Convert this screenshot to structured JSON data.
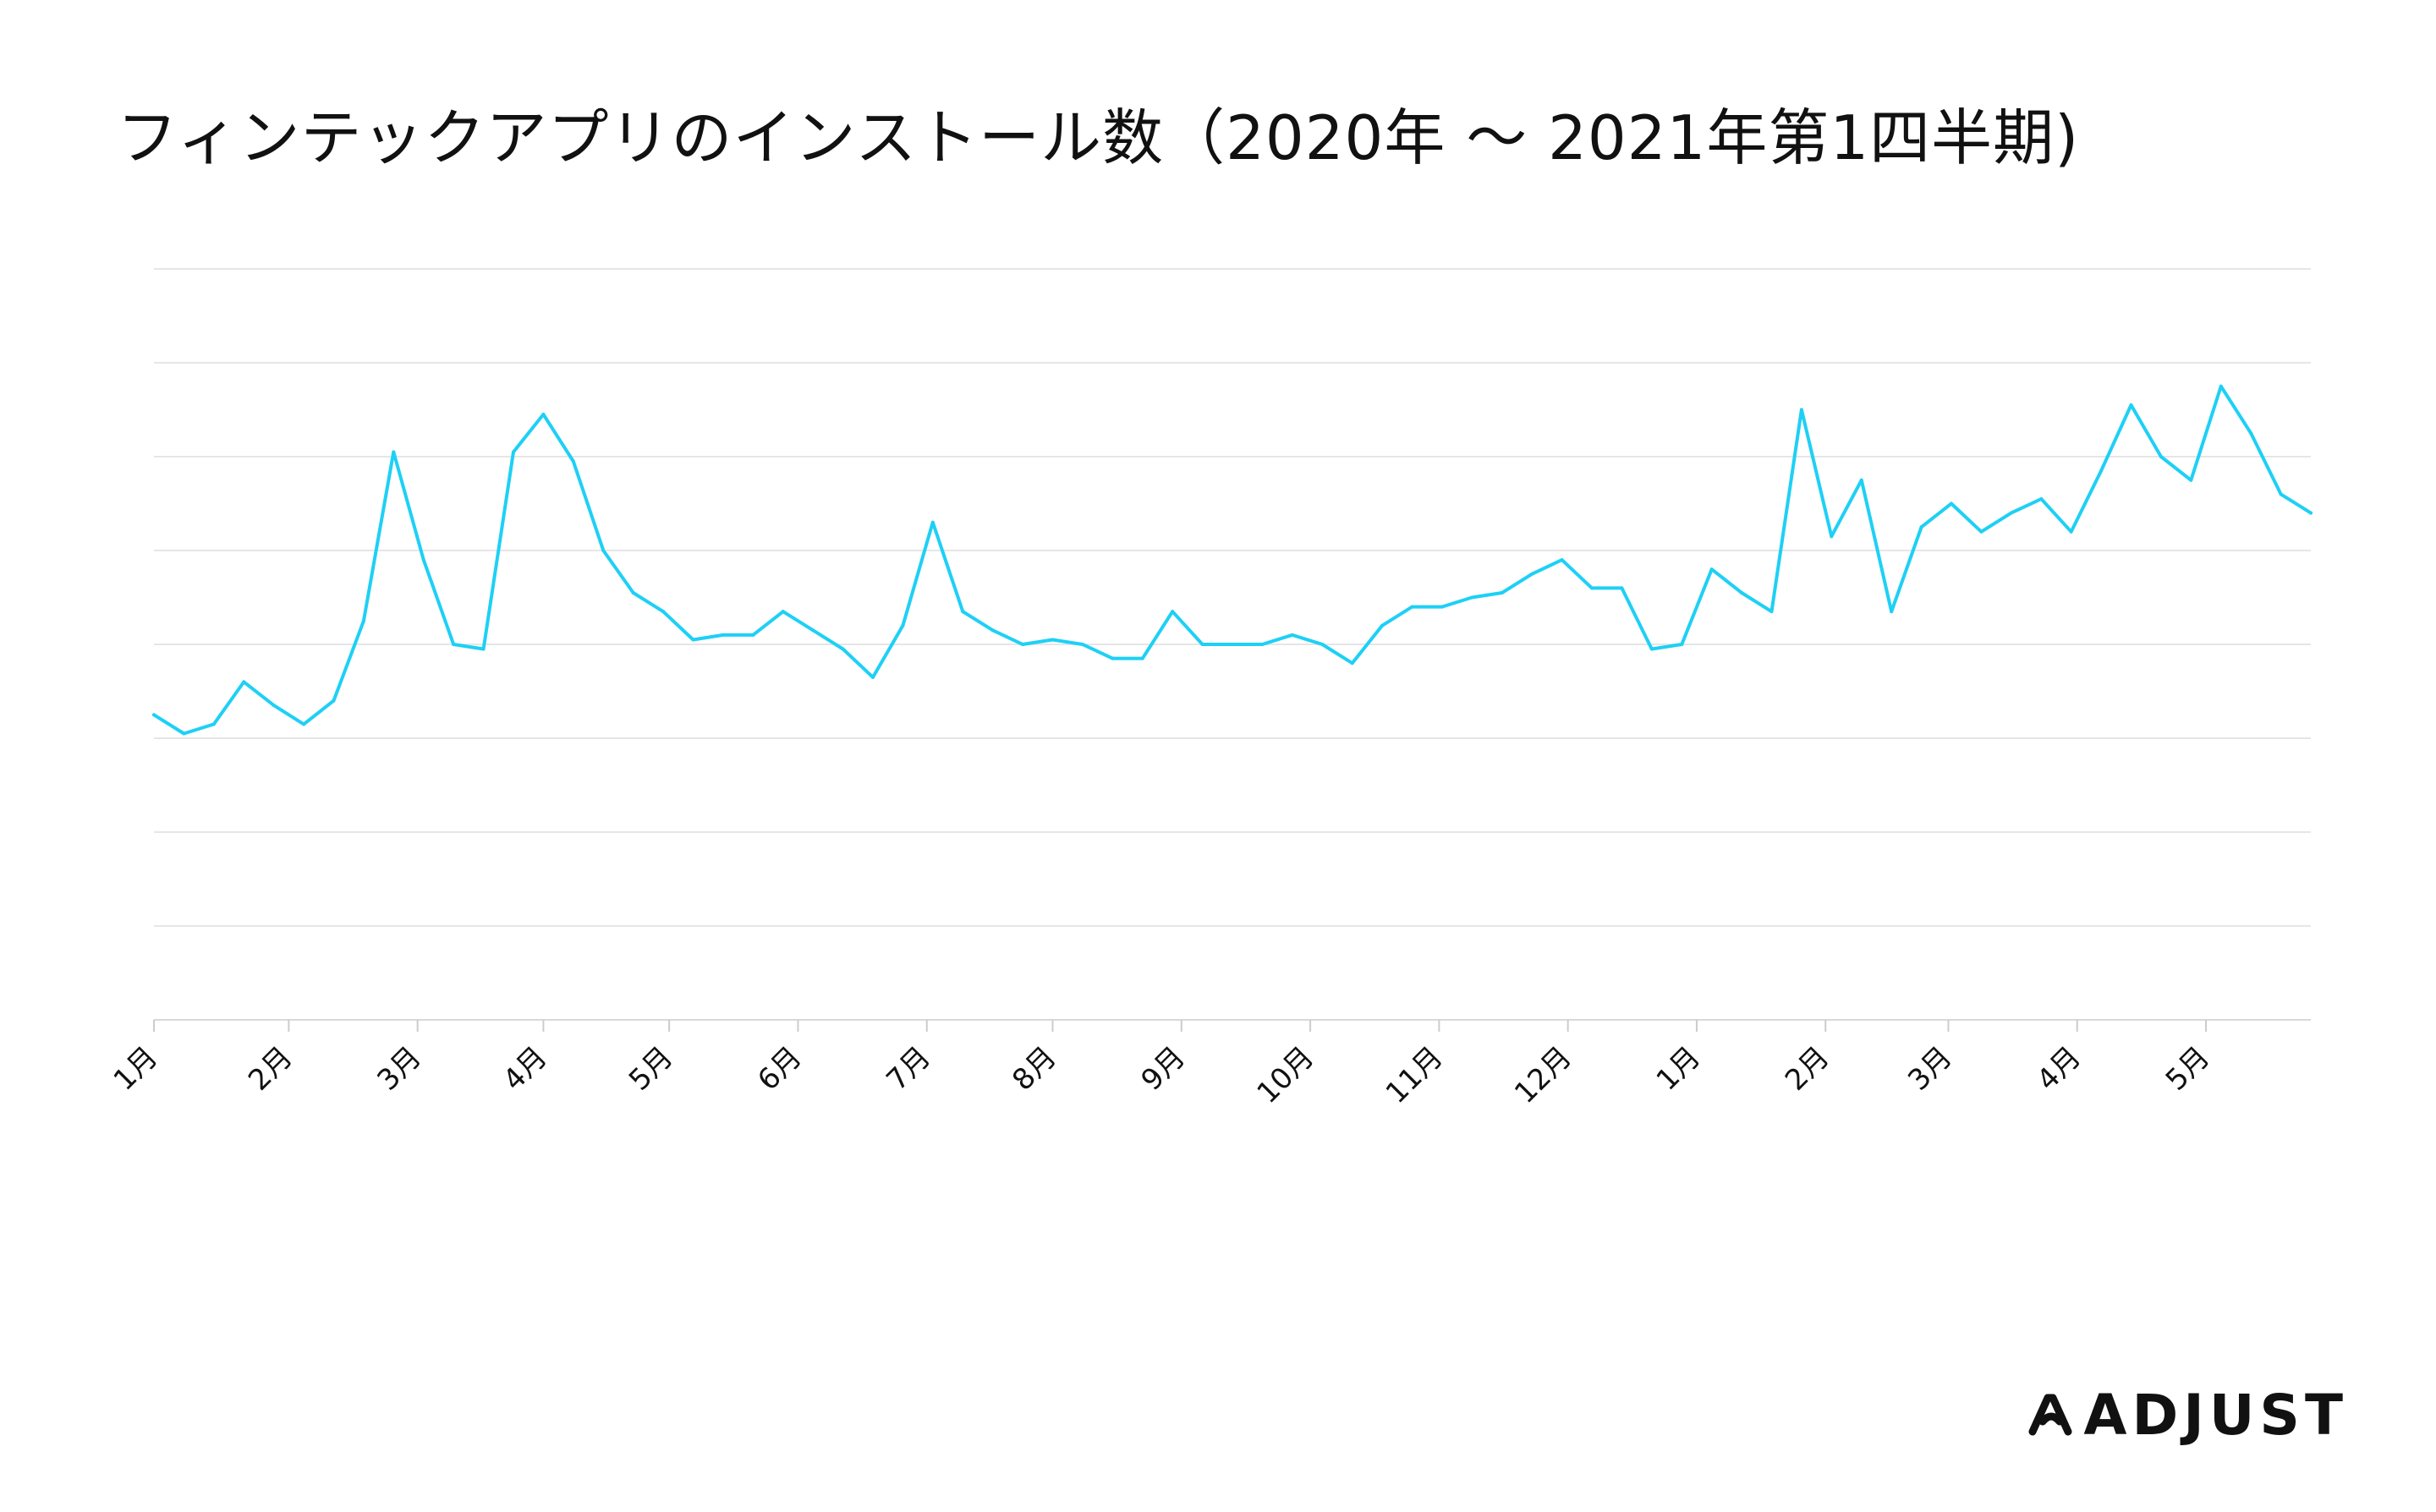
{
  "chart_data": {
    "type": "line",
    "title": "フィンテックアプリのインストール数（2020年 〜 2021年第1四半期)",
    "xlabel": "",
    "ylabel": "",
    "grid": true,
    "y_axis_labels_shown": false,
    "line_color": "#1ED0F5",
    "ylim": [
      0,
      8
    ],
    "month_ticks": [
      {
        "label": "1月",
        "x": 0
      },
      {
        "label": "2月",
        "x": 4.5
      },
      {
        "label": "3月",
        "x": 8.8
      },
      {
        "label": "4月",
        "x": 13.0
      },
      {
        "label": "5月",
        "x": 17.2
      },
      {
        "label": "6月",
        "x": 21.5
      },
      {
        "label": "7月",
        "x": 25.8
      },
      {
        "label": "8月",
        "x": 30.0
      },
      {
        "label": "9月",
        "x": 34.3
      },
      {
        "label": "10月",
        "x": 38.6
      },
      {
        "label": "11月",
        "x": 42.9
      },
      {
        "label": "12月",
        "x": 47.2
      },
      {
        "label": "1月",
        "x": 51.5
      },
      {
        "label": "2月",
        "x": 55.8
      },
      {
        "label": "3月",
        "x": 59.9
      },
      {
        "label": "4月",
        "x": 64.2
      },
      {
        "label": "5月",
        "x": 68.5
      }
    ],
    "series": [
      {
        "values": [
          3.25,
          3.05,
          3.15,
          3.6,
          3.35,
          3.15,
          3.4,
          4.25,
          6.05,
          4.9,
          4.0,
          3.95,
          6.05,
          6.45,
          5.95,
          5.0,
          4.55,
          4.35,
          4.05,
          4.1,
          4.1,
          4.35,
          4.15,
          3.95,
          3.65,
          4.2,
          5.3,
          4.35,
          4.15,
          4.0,
          4.05,
          4.0,
          3.85,
          3.85,
          4.35,
          4.0,
          4.0,
          4.0,
          4.1,
          4.0,
          3.8,
          4.2,
          4.4,
          4.4,
          4.5,
          4.55,
          4.75,
          4.9,
          4.6,
          4.6,
          3.95,
          4.0,
          4.8,
          4.55,
          4.35,
          6.5,
          5.15,
          5.75,
          4.35,
          5.25,
          5.5,
          5.2,
          5.4,
          5.55,
          5.2,
          5.85,
          6.55,
          6.0,
          5.75,
          6.75,
          6.25,
          5.6,
          5.4
        ]
      }
    ]
  },
  "brand": {
    "name": "ADJUST"
  }
}
